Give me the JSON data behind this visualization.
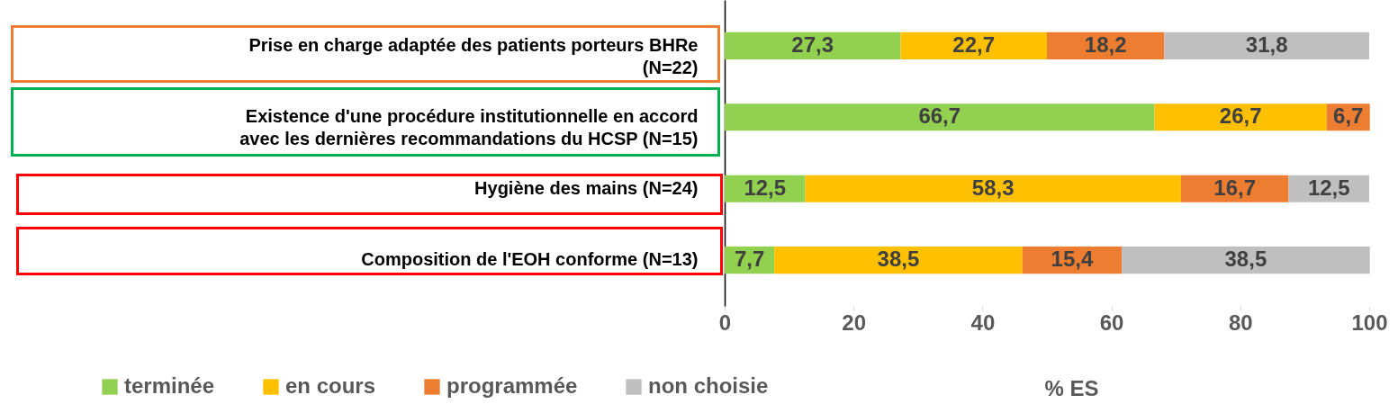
{
  "chart_data": {
    "type": "bar",
    "orientation": "horizontal",
    "stacked": true,
    "xlabel": "% ES",
    "categories": [
      "Prise en charge adaptée des patients porteurs BHRe (N=22)",
      "Existence d'une procédure institutionnelle en accord avec les dernières recommandations du HCSP (N=15)",
      "Hygiène des mains (N=24)",
      "Composition de l'EOH conforme (N=13)"
    ],
    "series": [
      {
        "name": "terminée",
        "color": "#92d050",
        "values": [
          27.3,
          66.7,
          12.5,
          7.7
        ],
        "value_labels": [
          "27,3",
          "66,7",
          "12,5",
          "7,7"
        ]
      },
      {
        "name": "en cours",
        "color": "#ffc000",
        "values": [
          22.7,
          26.7,
          58.3,
          38.5
        ],
        "value_labels": [
          "22,7",
          "26,7",
          "58,3",
          "38,5"
        ]
      },
      {
        "name": "programmée",
        "color": "#ed7d31",
        "values": [
          18.2,
          6.7,
          16.7,
          15.4
        ],
        "value_labels": [
          "18,2",
          "6,7",
          "16,7",
          "15,4"
        ]
      },
      {
        "name": "non choisie",
        "color": "#bfbfbf",
        "values": [
          31.8,
          null,
          12.5,
          38.5
        ],
        "value_labels": [
          "31,8",
          null,
          "12,5",
          "38,5"
        ]
      }
    ],
    "xlim": [
      0,
      100
    ],
    "xticks": [
      0,
      20,
      40,
      60,
      80,
      100
    ],
    "grid": false,
    "legend": "bottom"
  }
}
